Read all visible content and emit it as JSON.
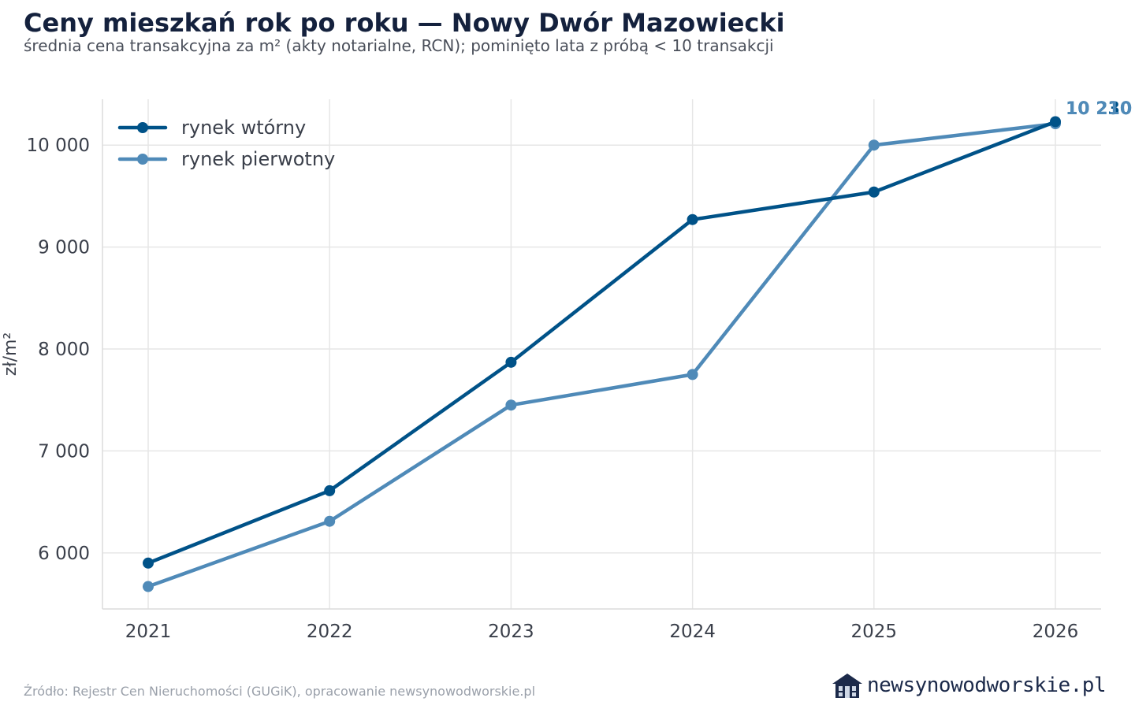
{
  "header": {
    "title": "Ceny mieszkań rok po roku — Nowy Dwór Mazowiecki",
    "subtitle": "średnia cena transakcyjna za m² (akty notarialne, RCN); pominięto lata z próbą < 10 transakcji"
  },
  "footer": {
    "source": "Źródło: Rejestr Cen Nieruchomości (GUGiK), opracowanie newsynowodworskie.pl",
    "brand": "newsynowodworskie.pl",
    "brand_icon": "house-icon"
  },
  "colors": {
    "secondary": "#005288",
    "primary_market": "#4f8ab8",
    "grid": "#e6e6e6",
    "axis_text": "#3a3f4a"
  },
  "chart_data": {
    "type": "line",
    "x": [
      "2021",
      "2022",
      "2023",
      "2024",
      "2025",
      "2026"
    ],
    "ylabel": "zł/m²",
    "xlabel": "",
    "ylim": [
      5450,
      10450
    ],
    "yticks": [
      6000,
      7000,
      8000,
      9000,
      10000
    ],
    "ytick_labels": [
      "6 000",
      "7 000",
      "8 000",
      "9 000",
      "10 000"
    ],
    "grid": true,
    "legend_position": "top-left",
    "series": [
      {
        "name": "rynek wtórny",
        "color": "#005288",
        "values": [
          5900,
          6610,
          7870,
          9270,
          9540,
          10230
        ],
        "end_label": "10 230"
      },
      {
        "name": "rynek pierwotny",
        "color": "#4f8ab8",
        "values": [
          5670,
          6310,
          7450,
          7750,
          10000,
          10210
        ],
        "end_label": "10 210"
      }
    ]
  }
}
